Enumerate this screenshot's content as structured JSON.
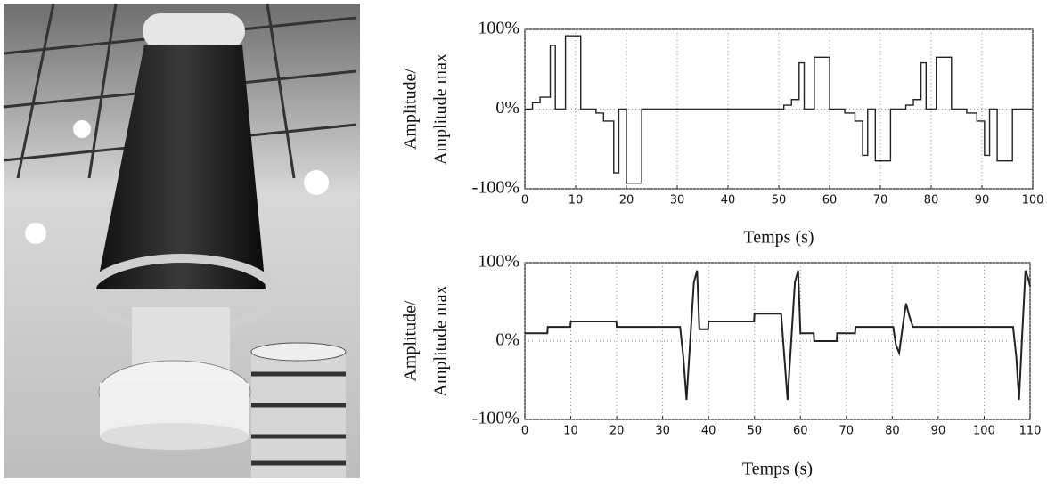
{
  "chart_data": [
    {
      "type": "step",
      "xlabel": "Temps (s)",
      "ylabel": [
        "Amplitude/",
        "Amplitude max"
      ],
      "x": [
        0,
        1.5,
        3,
        5,
        6,
        8,
        11,
        14,
        15.5,
        17.5,
        18.5,
        20,
        23,
        51,
        52.5,
        54,
        55,
        57,
        60,
        63,
        65,
        66.5,
        67.5,
        69,
        72,
        75,
        76.5,
        78,
        79,
        81,
        84,
        87,
        89,
        90.5,
        91.5,
        93,
        96,
        100
      ],
      "series": [
        {
          "color": "#222222",
          "values": [
            0,
            8,
            15,
            80,
            0,
            92,
            0,
            -5,
            -15,
            -80,
            0,
            -93,
            0,
            5,
            12,
            58,
            0,
            65,
            0,
            -5,
            -15,
            -58,
            0,
            -65,
            0,
            5,
            12,
            58,
            0,
            65,
            0,
            -5,
            -15,
            -58,
            0,
            -65,
            0,
            0
          ]
        }
      ],
      "xlim": [
        0,
        100
      ],
      "xticks": [
        0,
        10,
        20,
        30,
        40,
        50,
        60,
        70,
        80,
        90,
        100
      ],
      "ylim": [
        -100,
        100
      ],
      "yticks": [
        {
          "value": -100,
          "label": "-100%"
        },
        {
          "value": 0,
          "label": "0%"
        },
        {
          "value": 100,
          "label": "100%"
        }
      ],
      "grid": true
    },
    {
      "type": "line",
      "xlabel": "Temps (s)",
      "ylabel": [
        "Amplitude/",
        "Amplitude max"
      ],
      "x": [
        0,
        4.9,
        5,
        9.9,
        10,
        19.9,
        20,
        33.8,
        34.5,
        35.2,
        36,
        36.8,
        37.5,
        38,
        39.9,
        40,
        49.9,
        50,
        55.8,
        56.5,
        57.2,
        58,
        58.8,
        59.5,
        60,
        62.9,
        63,
        67.9,
        68,
        71.9,
        72,
        80.2,
        80.8,
        81.5,
        82.3,
        83,
        83.8,
        84.5,
        106.3,
        107,
        107.6,
        108.3,
        109,
        109.6,
        110
      ],
      "series": [
        {
          "color": "#222222",
          "values": [
            10,
            10,
            18,
            18,
            25,
            25,
            18,
            18,
            -20,
            -75,
            0,
            75,
            90,
            15,
            15,
            25,
            25,
            35,
            35,
            -20,
            -75,
            0,
            75,
            90,
            10,
            10,
            0,
            0,
            10,
            10,
            18,
            18,
            -5,
            -15,
            20,
            48,
            30,
            18,
            18,
            -20,
            -75,
            10,
            90,
            80,
            70
          ]
        }
      ],
      "xlim": [
        0,
        110
      ],
      "xticks": [
        0,
        10,
        20,
        30,
        40,
        50,
        60,
        70,
        80,
        90,
        100,
        110
      ],
      "ylim": [
        -100,
        100
      ],
      "yticks": [
        {
          "value": -100,
          "label": "-100%"
        },
        {
          "value": 0,
          "label": "0%"
        },
        {
          "value": 100,
          "label": "100%"
        }
      ],
      "grid": true
    }
  ]
}
